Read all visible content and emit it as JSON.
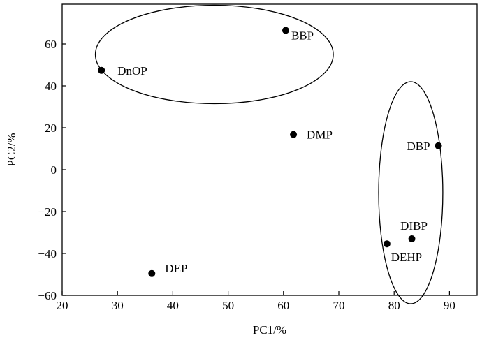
{
  "chart_data": {
    "type": "scatter",
    "title": "",
    "xlabel": "PC1/%",
    "ylabel": "PC2/%",
    "xlim": [
      20,
      95
    ],
    "ylim": [
      -60,
      79
    ],
    "xticks": [
      20,
      30,
      40,
      50,
      60,
      70,
      80,
      90
    ],
    "yticks": [
      -60,
      -40,
      -20,
      0,
      20,
      40,
      60
    ],
    "xtick_labels": [
      "20",
      "30",
      "40",
      "50",
      "60",
      "70",
      "80",
      "90"
    ],
    "ytick_labels": [
      "−60",
      "−40",
      "−20",
      "0",
      "20",
      "40",
      "60"
    ],
    "grid": false,
    "legend": "none",
    "points": [
      {
        "label": "BBP",
        "x": 60.4,
        "y": 66.5
      },
      {
        "label": "DnOP",
        "x": 27.1,
        "y": 47.4
      },
      {
        "label": "DMP",
        "x": 61.8,
        "y": 16.8
      },
      {
        "label": "DBP",
        "x": 88.0,
        "y": 11.4
      },
      {
        "label": "DIBP",
        "x": 83.2,
        "y": -33.0
      },
      {
        "label": "DEHP",
        "x": 78.7,
        "y": -35.4
      },
      {
        "label": "DEP",
        "x": 36.2,
        "y": -49.6
      }
    ],
    "ellipses": [
      {
        "center": [
          47.5,
          55.0
        ],
        "semi_axes": [
          21.5,
          23.5
        ]
      },
      {
        "center": [
          83.0,
          -11.0
        ],
        "semi_axes": [
          5.8,
          53.0
        ]
      }
    ]
  }
}
